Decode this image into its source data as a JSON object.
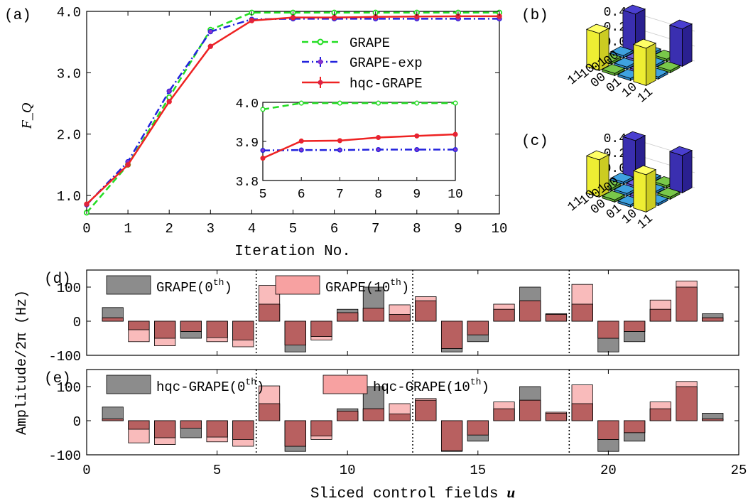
{
  "panel_labels": {
    "a": "(a)",
    "b": "(b)",
    "c": "(c)",
    "d": "(d)",
    "e": "(e)"
  },
  "chart_data": [
    {
      "type": "line",
      "panel": "(a)",
      "ylabel": "F_Q",
      "xlabel": "Iteration No.",
      "xlim": [
        0,
        10
      ],
      "ylim": [
        0.7,
        4.0
      ],
      "xticks": [
        "0",
        "1",
        "2",
        "3",
        "4",
        "5",
        "6",
        "7",
        "8",
        "9",
        "10"
      ],
      "yticks": [
        "1.0",
        "2.0",
        "3.0",
        "4.0"
      ],
      "legend_position": "center-right",
      "x": [
        0,
        1,
        2,
        3,
        4,
        5,
        6,
        7,
        8,
        9,
        10
      ],
      "series": [
        {
          "name": "GRAPE",
          "color": "#22dd22",
          "style": "dashed",
          "marker": "circle-open",
          "values": [
            0.72,
            1.5,
            2.6,
            3.7,
            3.98,
            3.98,
            3.98,
            3.98,
            3.98,
            3.98,
            3.98
          ]
        },
        {
          "name": "GRAPE-exp",
          "color": "#2222dd",
          "style": "dash-dot",
          "marker": "circle",
          "values": [
            0.85,
            1.55,
            2.7,
            3.67,
            3.87,
            3.88,
            3.88,
            3.88,
            3.88,
            3.88,
            3.88
          ]
        },
        {
          "name": "hqc-GRAPE",
          "color": "#ee2222",
          "style": "solid",
          "marker": "circle",
          "values": [
            0.86,
            1.5,
            2.53,
            3.43,
            3.85,
            3.9,
            3.9,
            3.91,
            3.915,
            3.92,
            3.92
          ]
        }
      ],
      "inset": {
        "xlim": [
          5,
          10
        ],
        "ylim": [
          3.8,
          4.0
        ],
        "xticks": [
          "5",
          "6",
          "7",
          "8",
          "9",
          "10"
        ],
        "yticks": [
          "3.8",
          "3.9",
          "4.0"
        ],
        "x": [
          5,
          6,
          7,
          8,
          9,
          10
        ],
        "series": [
          {
            "name": "GRAPE",
            "values": [
              3.982,
              3.998,
              3.998,
              3.998,
              3.998,
              3.998
            ]
          },
          {
            "name": "GRAPE-exp",
            "values": [
              3.877,
              3.878,
              3.878,
              3.879,
              3.879,
              3.879
            ]
          },
          {
            "name": "hqc-GRAPE",
            "values": [
              3.857,
              3.901,
              3.902,
              3.91,
              3.914,
              3.918
            ]
          }
        ]
      }
    },
    {
      "type": "bar3d",
      "panel": "(b)",
      "zticks": [
        "0.0",
        "0.2",
        "0.4"
      ],
      "row_labels": [
        "00",
        "01",
        "10",
        "11"
      ],
      "col_labels": [
        "00",
        "01",
        "10",
        "11"
      ],
      "values": [
        [
          0.5,
          0,
          0,
          0.5
        ],
        [
          0,
          0,
          0,
          0
        ],
        [
          0,
          0,
          0,
          0
        ],
        [
          0.5,
          0,
          0,
          0.5
        ]
      ]
    },
    {
      "type": "bar3d",
      "panel": "(c)",
      "zticks": [
        "0.0",
        "0.2",
        "0.4"
      ],
      "row_labels": [
        "00",
        "01",
        "10",
        "11"
      ],
      "col_labels": [
        "00",
        "01",
        "10",
        "11"
      ],
      "values": [
        [
          0.5,
          0,
          0,
          0.5
        ],
        [
          0,
          0,
          0,
          0
        ],
        [
          0,
          0,
          0,
          0
        ],
        [
          0.5,
          0,
          0,
          0.5
        ]
      ]
    },
    {
      "type": "bar",
      "panel": "(d)",
      "xlim": [
        0,
        25
      ],
      "ylim": [
        -100,
        150
      ],
      "yticks": [
        "-100",
        "0",
        "100"
      ],
      "xticks": [
        "0",
        "5",
        "10",
        "15",
        "20",
        "25"
      ],
      "legend_position": "top",
      "categories": [
        1,
        2,
        3,
        4,
        5,
        6,
        7,
        8,
        9,
        10,
        11,
        12,
        13,
        14,
        15,
        16,
        17,
        18,
        19,
        20,
        21,
        22,
        23,
        24
      ],
      "series": [
        {
          "name": "GRAPE(0",
          "sup": "th",
          "suffix": ")",
          "color": "#8c8c8c",
          "values": [
            40,
            -25,
            -50,
            -50,
            -48,
            -55,
            50,
            -90,
            -45,
            35,
            100,
            20,
            60,
            -90,
            -60,
            35,
            100,
            22,
            50,
            -90,
            -60,
            35,
            100,
            22
          ]
        },
        {
          "name": "GRAPE(10",
          "sup": "th",
          "suffix": ")",
          "color": "#f7a1a1",
          "values": [
            10,
            -60,
            -72,
            -30,
            -60,
            -75,
            105,
            -70,
            -55,
            25,
            38,
            48,
            72,
            -80,
            -40,
            50,
            60,
            20,
            108,
            -50,
            -30,
            62,
            118,
            10
          ]
        }
      ]
    },
    {
      "type": "bar",
      "panel": "(e)",
      "xlim": [
        0,
        25
      ],
      "ylim": [
        -100,
        150
      ],
      "yticks": [
        "-100",
        "0",
        "100"
      ],
      "xticks": [
        "0",
        "5",
        "10",
        "15",
        "20",
        "25"
      ],
      "xlabel": "Sliced control fields",
      "xlabel_symbol": "u",
      "ylabel": "Amplitude/2π (Hz)",
      "legend_position": "top",
      "categories": [
        1,
        2,
        3,
        4,
        5,
        6,
        7,
        8,
        9,
        10,
        11,
        12,
        13,
        14,
        15,
        16,
        17,
        18,
        19,
        20,
        21,
        22,
        23,
        24
      ],
      "series": [
        {
          "name": "hqc-GRAPE(0",
          "sup": "th",
          "suffix": ")",
          "color": "#8c8c8c",
          "values": [
            40,
            -25,
            -50,
            -50,
            -48,
            -55,
            50,
            -90,
            -45,
            35,
            100,
            20,
            60,
            -90,
            -60,
            35,
            100,
            22,
            50,
            -90,
            -60,
            35,
            100,
            22
          ]
        },
        {
          "name": "hqc-GRAPE(10",
          "sup": "th",
          "suffix": ")",
          "color": "#f7a1a1",
          "values": [
            5,
            -65,
            -70,
            -22,
            -62,
            -75,
            102,
            -75,
            -55,
            28,
            35,
            50,
            65,
            -88,
            -42,
            55,
            60,
            25,
            105,
            -55,
            -35,
            55,
            115,
            5
          ]
        }
      ]
    }
  ]
}
